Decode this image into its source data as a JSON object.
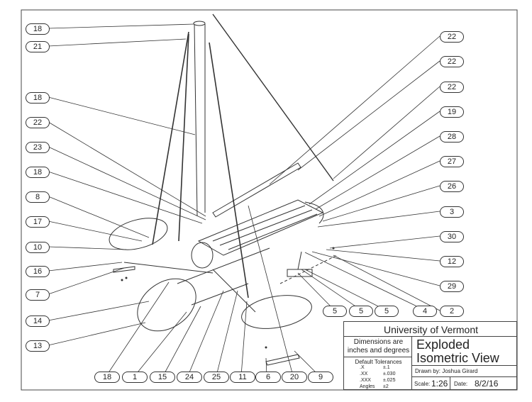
{
  "balloons_left": [
    "18",
    "21",
    "18",
    "22",
    "23",
    "18",
    "8",
    "17",
    "10",
    "16",
    "7",
    "14",
    "13"
  ],
  "balloons_right": [
    "22",
    "22",
    "22",
    "19",
    "28",
    "27",
    "26",
    "3",
    "30",
    "12",
    "29",
    "2",
    "4",
    "5",
    "5",
    "5"
  ],
  "balloons_bottom": [
    "18",
    "1",
    "15",
    "24",
    "25",
    "11",
    "6",
    "20",
    "9"
  ],
  "title_block": {
    "organization": "University of Vermont",
    "dimensions_note": "Dimensions are inches and degrees",
    "tolerance_header": "Default Tolerances",
    "tolerances": [
      {
        "label": ".X",
        "value": "±.1"
      },
      {
        "label": ".XX",
        "value": "±.030"
      },
      {
        "label": ".XXX",
        "value": "±.025"
      },
      {
        "label": "Angles",
        "value": "±2"
      }
    ],
    "title_line1": "Exploded",
    "title_line2": "Isometric View",
    "drawn_by": "Drawn by: Joshua Girard",
    "scale_label": "Scale:",
    "scale_value": "1:26",
    "date_label": "Date:",
    "date_value": "8/2/16"
  }
}
